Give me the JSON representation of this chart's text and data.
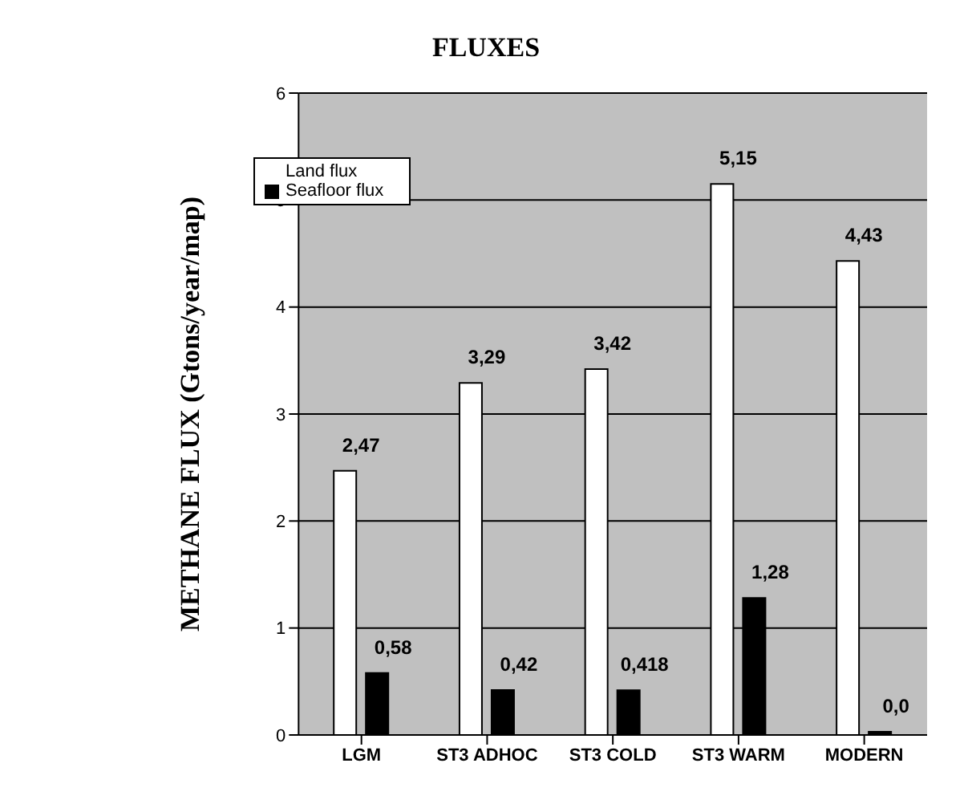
{
  "chart_data": {
    "type": "bar",
    "title": "FLUXES",
    "ylabel": "METHANE FLUX (Gtons/year/map)",
    "categories": [
      "LGM",
      "ST3 ADHOC",
      "ST3 COLD",
      "ST3 WARM",
      "MODERN"
    ],
    "series": [
      {
        "name": "Land flux",
        "color": "#ffffff",
        "values": [
          2.47,
          3.29,
          3.42,
          5.15,
          4.43
        ],
        "value_labels": [
          "2,47",
          "3,29",
          "3,42",
          "5,15",
          "4,43"
        ]
      },
      {
        "name": "Seafloor flux",
        "color": "#000000",
        "values": [
          0.58,
          0.42,
          0.418,
          1.28,
          0.0
        ],
        "value_labels": [
          "0,58",
          "0,42",
          "0,418",
          "1,28",
          "0,0"
        ]
      }
    ],
    "ylim": [
      0,
      6
    ],
    "yticks": [
      0,
      1,
      2,
      3,
      4,
      5,
      6
    ],
    "grid": "y",
    "legend": "top left"
  }
}
